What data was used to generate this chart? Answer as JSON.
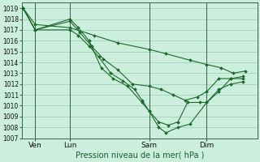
{
  "title": "",
  "xlabel": "Pression niveau de la mer( hPa )",
  "ylim": [
    1007,
    1019.5
  ],
  "xlim": [
    0.0,
    9.8
  ],
  "background_color": "#cceedd",
  "grid_color": "#99ccbb",
  "line_color": "#1a6b2a",
  "marker_color": "#1a6b2a",
  "xtick_labels": [
    "Ven",
    "Lun",
    "Sam",
    "Dim"
  ],
  "xtick_positions": [
    0.55,
    2.0,
    5.3,
    7.7
  ],
  "ytick_positions": [
    1007,
    1008,
    1009,
    1010,
    1011,
    1012,
    1013,
    1014,
    1015,
    1016,
    1017,
    1018,
    1019
  ],
  "series": [
    {
      "x": [
        0.05,
        0.55,
        2.0,
        3.0,
        4.0,
        5.3,
        6.0,
        7.0,
        7.7,
        8.3,
        8.8,
        9.3
      ],
      "y": [
        1019.0,
        1017.5,
        1017.2,
        1016.5,
        1015.8,
        1015.2,
        1014.8,
        1014.2,
        1013.8,
        1013.5,
        1013.0,
        1013.2
      ]
    },
    {
      "x": [
        0.05,
        0.55,
        2.0,
        2.4,
        2.9,
        3.4,
        4.0,
        4.6,
        5.3,
        5.8,
        6.3,
        6.8,
        7.3,
        7.7,
        8.2,
        8.7,
        9.2
      ],
      "y": [
        1019.0,
        1017.0,
        1017.8,
        1016.8,
        1015.5,
        1014.3,
        1013.3,
        1012.0,
        1011.8,
        1011.5,
        1011.0,
        1010.5,
        1010.8,
        1011.3,
        1012.5,
        1012.5,
        1012.5
      ]
    },
    {
      "x": [
        0.05,
        0.55,
        2.0,
        2.35,
        2.8,
        3.3,
        3.8,
        4.4,
        5.0,
        5.3,
        5.7,
        6.1,
        6.5,
        6.9,
        7.4,
        7.7,
        8.2,
        8.7,
        9.2
      ],
      "y": [
        1019.0,
        1017.0,
        1018.0,
        1017.2,
        1016.0,
        1013.5,
        1012.5,
        1011.8,
        1010.3,
        1009.5,
        1008.5,
        1008.2,
        1008.5,
        1010.3,
        1010.3,
        1010.3,
        1011.5,
        1012.0,
        1012.2
      ]
    },
    {
      "x": [
        0.05,
        0.55,
        2.0,
        2.35,
        2.8,
        3.2,
        3.7,
        4.2,
        4.7,
        5.0,
        5.3,
        5.7,
        6.0,
        6.5,
        7.0,
        7.7,
        8.2,
        8.7,
        9.2
      ],
      "y": [
        1019.0,
        1017.0,
        1017.0,
        1016.5,
        1015.5,
        1014.5,
        1013.0,
        1012.3,
        1011.5,
        1010.5,
        1009.5,
        1008.0,
        1007.5,
        1008.0,
        1008.3,
        1010.3,
        1011.3,
        1012.5,
        1012.7
      ]
    }
  ],
  "vlines": [
    0.55,
    2.0,
    5.3,
    7.7
  ],
  "vline_color": "#336644"
}
